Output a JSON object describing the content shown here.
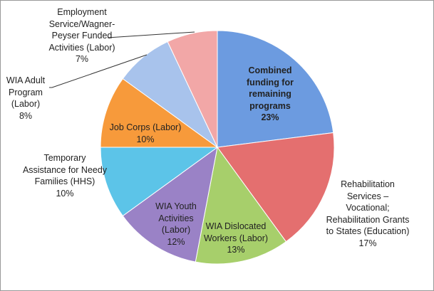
{
  "chart_data": {
    "type": "pie",
    "categories": [
      "Combined funding for remaining programs",
      "Rehabilitation Services – Vocational; Rehabilitation Grants to States (Education)",
      "WIA Dislocated Workers (Labor)",
      "WIA Youth Activities (Labor)",
      "Temporary Assistance for Needy Families (HHS)",
      "Job Corps (Labor)",
      "WIA Adult Program (Labor)",
      "Employment Service/Wagner-Peyser Funded Activities (Labor)"
    ],
    "values": [
      23,
      17,
      13,
      12,
      10,
      10,
      8,
      7
    ],
    "value_labels": [
      "23%",
      "17%",
      "13%",
      "12%",
      "10%",
      "10%",
      "8%",
      "7%"
    ],
    "colors": [
      "#6c9be0",
      "#e46f6f",
      "#a7cf6b",
      "#9a82c6",
      "#5cc4e8",
      "#f79a3b",
      "#a8c3ec",
      "#f2a7a7"
    ]
  }
}
